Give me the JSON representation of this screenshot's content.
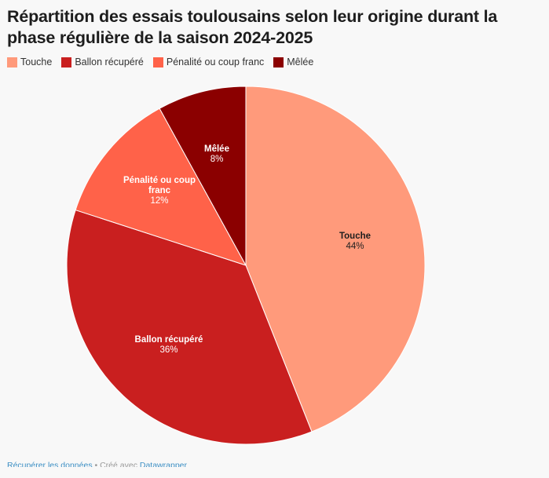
{
  "title": "Répartition des essais toulousains selon leur origine durant la phase régulière de la saison 2024-2025",
  "colors": {
    "touche": "#ff9a7b",
    "ballon": "#c91f1f",
    "penalite": "#ff6249",
    "melee": "#8b0000"
  },
  "chart_data": {
    "type": "pie",
    "title": "Répartition des essais toulousains selon leur origine durant la phase régulière de la saison 2024-2025",
    "legend_position": "top-left",
    "series": [
      {
        "name": "Touche",
        "value": 44,
        "label": "44%",
        "color": "#ff9a7b",
        "text_color": "#1d1d1d"
      },
      {
        "name": "Ballon récupéré",
        "value": 36,
        "label": "36%",
        "color": "#c91f1f",
        "text_color": "#ffffff"
      },
      {
        "name": "Pénalité ou coup franc",
        "value": 12,
        "label": "12%",
        "color": "#ff6249",
        "text_color": "#ffffff"
      },
      {
        "name": "Mêlée",
        "value": 8,
        "label": "8%",
        "color": "#8b0000",
        "text_color": "#ffffff"
      }
    ]
  },
  "footer": {
    "get_data": "Récupérer les données",
    "separator": " • Créé avec ",
    "tool": "Datawrapper"
  }
}
